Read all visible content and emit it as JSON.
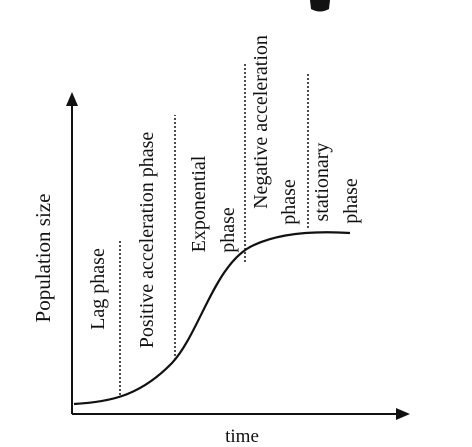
{
  "axes": {
    "y_label": "Population size",
    "x_label": "time"
  },
  "phases": [
    {
      "lines": [
        "Lag phase"
      ]
    },
    {
      "lines": [
        "Positive acceleration phase"
      ]
    },
    {
      "lines": [
        "Exponential",
        "phase"
      ]
    },
    {
      "lines": [
        "Negative acceleration",
        "phase"
      ]
    },
    {
      "lines": [
        "stationary",
        "phase"
      ]
    }
  ],
  "colors": {
    "ink": "#111111",
    "background": "#ffffff"
  }
}
